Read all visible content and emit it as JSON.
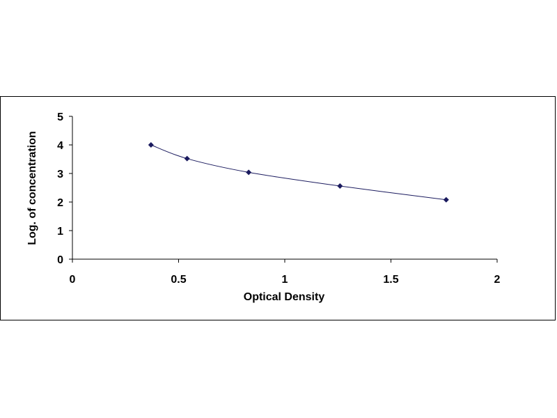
{
  "chart_data": {
    "type": "scatter",
    "title": "",
    "xlabel": "Optical Density",
    "ylabel": "Log. of concentration",
    "xlim": [
      0,
      2
    ],
    "ylim": [
      0,
      5
    ],
    "x_ticks": [
      "0",
      "0.5",
      "1",
      "1.5",
      "2"
    ],
    "y_ticks": [
      "0",
      "1",
      "2",
      "3",
      "4",
      "5"
    ],
    "grid": false,
    "legend": "none",
    "trendline": "smooth curve through points",
    "series": [
      {
        "x": [
          0.37,
          0.54,
          0.83,
          1.26,
          1.76
        ],
        "y": [
          4.0,
          3.52,
          3.04,
          2.56,
          2.08
        ],
        "color": "#1a1a5e"
      }
    ]
  }
}
